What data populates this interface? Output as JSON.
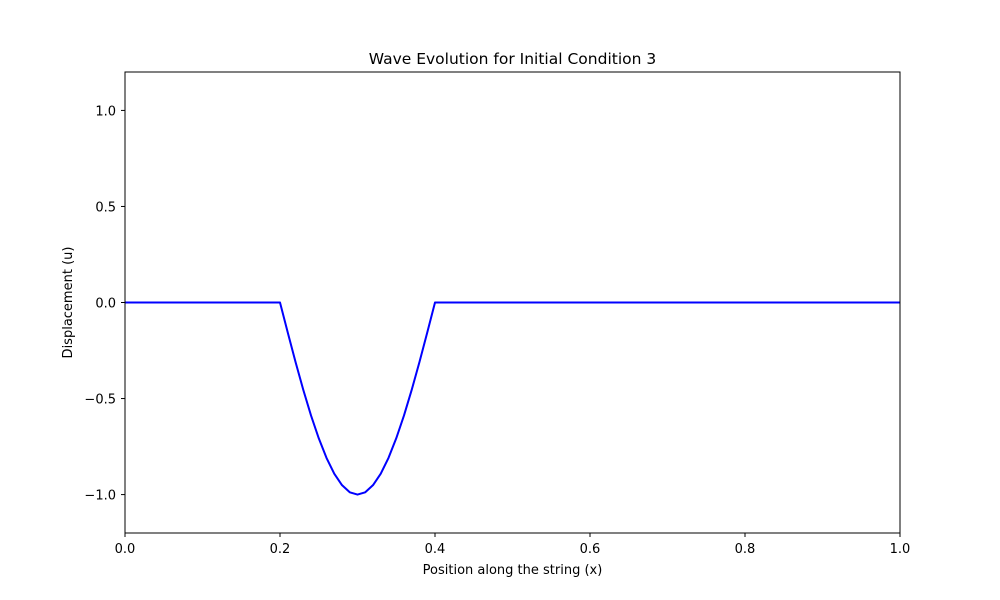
{
  "chart_data": {
    "type": "line",
    "title": "Wave Evolution for Initial Condition 3",
    "xlabel": "Position along the string (x)",
    "ylabel": "Displacement (u)",
    "xlim": [
      0.0,
      1.0
    ],
    "ylim": [
      -1.2,
      1.2
    ],
    "x_ticks": [
      0.0,
      0.2,
      0.4,
      0.6,
      0.8,
      1.0
    ],
    "x_tick_labels": [
      "0.0",
      "0.2",
      "0.4",
      "0.6",
      "0.8",
      "1.0"
    ],
    "y_ticks": [
      -1.0,
      -0.5,
      0.0,
      0.5,
      1.0
    ],
    "y_tick_labels": [
      "−1.0",
      "−0.5",
      "0.0",
      "0.5",
      "1.0"
    ],
    "grid": false,
    "series": [
      {
        "color": "#0000ff",
        "x": [
          0.0,
          0.2,
          0.21,
          0.22,
          0.23,
          0.24,
          0.25,
          0.26,
          0.27,
          0.28,
          0.29,
          0.3,
          0.31,
          0.32,
          0.33,
          0.34,
          0.35,
          0.36,
          0.37,
          0.38,
          0.39,
          0.4,
          1.0
        ],
        "y": [
          0.0,
          0.0,
          -0.156,
          -0.309,
          -0.454,
          -0.588,
          -0.707,
          -0.809,
          -0.891,
          -0.951,
          -0.988,
          -1.0,
          -0.988,
          -0.951,
          -0.891,
          -0.809,
          -0.707,
          -0.588,
          -0.454,
          -0.309,
          -0.156,
          0.0,
          0.0
        ]
      }
    ]
  }
}
